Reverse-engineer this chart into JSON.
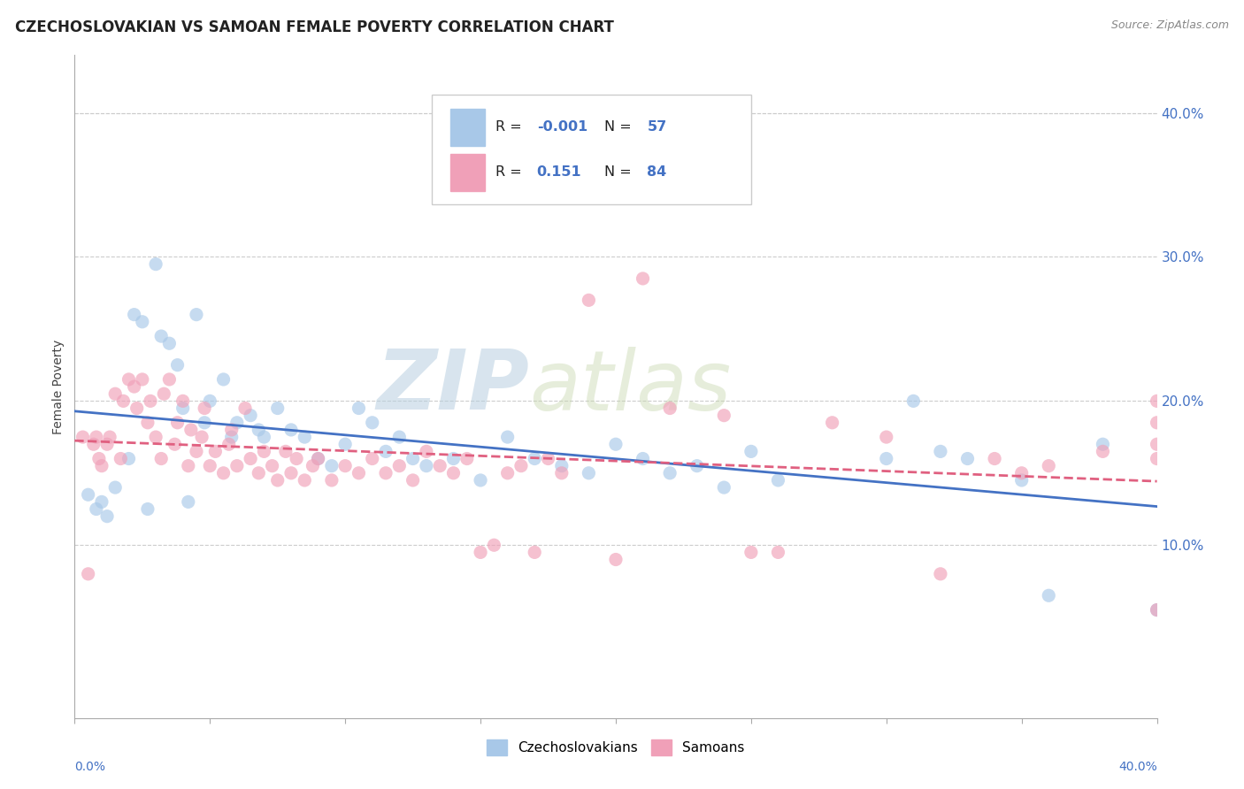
{
  "title": "CZECHOSLOVAKIAN VS SAMOAN FEMALE POVERTY CORRELATION CHART",
  "source": "Source: ZipAtlas.com",
  "ylabel": "Female Poverty",
  "watermark_line1": "ZIP",
  "watermark_line2": "atlas",
  "legend_bottom": [
    "Czechoslovakians",
    "Samoans"
  ],
  "series": [
    {
      "name": "Czechoslovakians",
      "R": -0.001,
      "N": 57,
      "color": "#a8c8e8",
      "line_color": "#4472c4",
      "line_style": "solid",
      "x": [
        0.005,
        0.008,
        0.01,
        0.012,
        0.015,
        0.02,
        0.022,
        0.025,
        0.027,
        0.03,
        0.032,
        0.035,
        0.038,
        0.04,
        0.042,
        0.045,
        0.048,
        0.05,
        0.055,
        0.058,
        0.06,
        0.065,
        0.068,
        0.07,
        0.075,
        0.08,
        0.085,
        0.09,
        0.095,
        0.1,
        0.105,
        0.11,
        0.115,
        0.12,
        0.125,
        0.13,
        0.14,
        0.15,
        0.16,
        0.17,
        0.18,
        0.19,
        0.2,
        0.21,
        0.22,
        0.23,
        0.24,
        0.25,
        0.26,
        0.3,
        0.31,
        0.32,
        0.33,
        0.35,
        0.36,
        0.38,
        0.4
      ],
      "y": [
        0.135,
        0.125,
        0.13,
        0.12,
        0.14,
        0.16,
        0.26,
        0.255,
        0.125,
        0.295,
        0.245,
        0.24,
        0.225,
        0.195,
        0.13,
        0.26,
        0.185,
        0.2,
        0.215,
        0.175,
        0.185,
        0.19,
        0.18,
        0.175,
        0.195,
        0.18,
        0.175,
        0.16,
        0.155,
        0.17,
        0.195,
        0.185,
        0.165,
        0.175,
        0.16,
        0.155,
        0.16,
        0.145,
        0.175,
        0.16,
        0.155,
        0.15,
        0.17,
        0.16,
        0.15,
        0.155,
        0.14,
        0.165,
        0.145,
        0.16,
        0.2,
        0.165,
        0.16,
        0.145,
        0.065,
        0.17,
        0.055
      ]
    },
    {
      "name": "Samoans",
      "R": 0.151,
      "N": 84,
      "color": "#f0a0b8",
      "line_color": "#e06080",
      "line_style": "dashed",
      "x": [
        0.003,
        0.005,
        0.007,
        0.008,
        0.009,
        0.01,
        0.012,
        0.013,
        0.015,
        0.017,
        0.018,
        0.02,
        0.022,
        0.023,
        0.025,
        0.027,
        0.028,
        0.03,
        0.032,
        0.033,
        0.035,
        0.037,
        0.038,
        0.04,
        0.042,
        0.043,
        0.045,
        0.047,
        0.048,
        0.05,
        0.052,
        0.055,
        0.057,
        0.058,
        0.06,
        0.063,
        0.065,
        0.068,
        0.07,
        0.073,
        0.075,
        0.078,
        0.08,
        0.082,
        0.085,
        0.088,
        0.09,
        0.095,
        0.1,
        0.105,
        0.11,
        0.115,
        0.12,
        0.125,
        0.13,
        0.135,
        0.14,
        0.145,
        0.15,
        0.155,
        0.16,
        0.165,
        0.17,
        0.175,
        0.18,
        0.19,
        0.2,
        0.21,
        0.22,
        0.24,
        0.25,
        0.26,
        0.28,
        0.3,
        0.32,
        0.34,
        0.35,
        0.36,
        0.38,
        0.4,
        0.4,
        0.4,
        0.4,
        0.4
      ],
      "y": [
        0.175,
        0.08,
        0.17,
        0.175,
        0.16,
        0.155,
        0.17,
        0.175,
        0.205,
        0.16,
        0.2,
        0.215,
        0.21,
        0.195,
        0.215,
        0.185,
        0.2,
        0.175,
        0.16,
        0.205,
        0.215,
        0.17,
        0.185,
        0.2,
        0.155,
        0.18,
        0.165,
        0.175,
        0.195,
        0.155,
        0.165,
        0.15,
        0.17,
        0.18,
        0.155,
        0.195,
        0.16,
        0.15,
        0.165,
        0.155,
        0.145,
        0.165,
        0.15,
        0.16,
        0.145,
        0.155,
        0.16,
        0.145,
        0.155,
        0.15,
        0.16,
        0.15,
        0.155,
        0.145,
        0.165,
        0.155,
        0.15,
        0.16,
        0.095,
        0.1,
        0.15,
        0.155,
        0.095,
        0.16,
        0.15,
        0.27,
        0.09,
        0.285,
        0.195,
        0.19,
        0.095,
        0.095,
        0.185,
        0.175,
        0.08,
        0.16,
        0.15,
        0.155,
        0.165,
        0.2,
        0.185,
        0.16,
        0.17,
        0.055
      ]
    }
  ],
  "xlim": [
    0.0,
    0.4
  ],
  "ylim": [
    -0.02,
    0.44
  ],
  "yticks": [
    0.1,
    0.2,
    0.3,
    0.4
  ],
  "ytick_labels": [
    "10.0%",
    "20.0%",
    "30.0%",
    "40.0%"
  ],
  "xtick_labels": [
    "0.0%",
    "40.0%"
  ],
  "grid_color": "#cccccc",
  "grid_style": "dashed",
  "background_color": "#ffffff",
  "title_color": "#222222",
  "source_color": "#888888",
  "axis_label_color": "#4472c4",
  "legend_R_color": "#4472c4",
  "watermark_color": "#d0dce8",
  "marker_size": 120,
  "marker_alpha": 0.65
}
